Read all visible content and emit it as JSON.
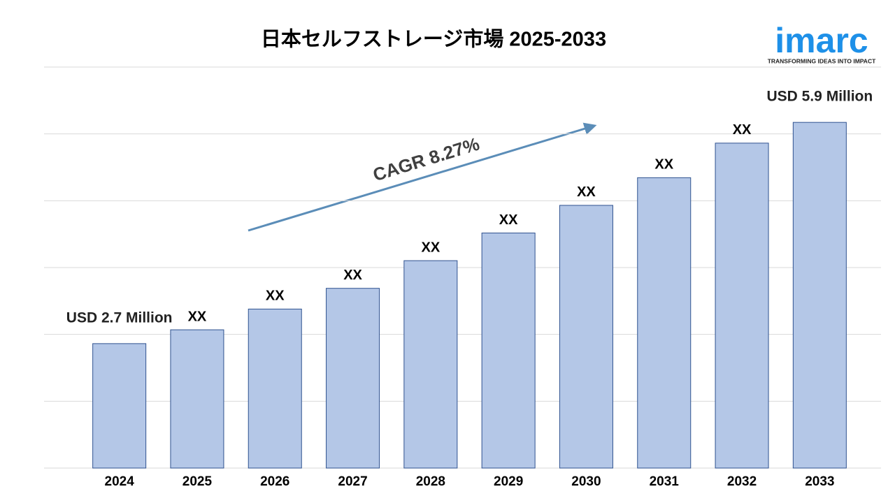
{
  "chart_data": {
    "type": "bar",
    "title": "日本セルフストレージ市場 2025-2033",
    "categories": [
      "2024",
      "2025",
      "2026",
      "2027",
      "2028",
      "2029",
      "2030",
      "2031",
      "2032",
      "2033"
    ],
    "values": [
      2.7,
      2.9,
      3.2,
      3.5,
      3.9,
      4.3,
      4.7,
      5.1,
      5.6,
      5.9
    ],
    "value_labels": [
      "USD 2.7 Million",
      "XX",
      "XX",
      "XX",
      "XX",
      "XX",
      "XX",
      "XX",
      "XX",
      "USD 5.9 Million"
    ],
    "color": "#b4c7e7",
    "ylim": [
      0.9,
      6.7
    ],
    "grid": true,
    "annotation": "CAGR 8.27%"
  },
  "logo": {
    "name": "imarc",
    "tagline": "TRANSFORMING IDEAS INTO IMPACT"
  }
}
